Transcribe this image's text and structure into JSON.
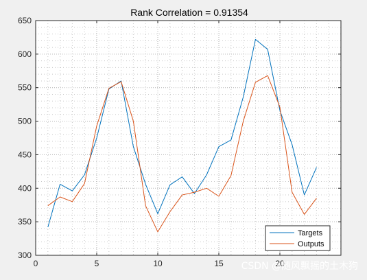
{
  "figure_background": "#f0f0f0",
  "chart_data": {
    "type": "line",
    "title": "Rank Correlation = 0.91354",
    "xlabel": "",
    "ylabel": "",
    "xlim": [
      0,
      25
    ],
    "ylim": [
      300,
      650
    ],
    "xticks": [
      0,
      5,
      10,
      15,
      20
    ],
    "yticks": [
      300,
      350,
      400,
      450,
      500,
      550,
      600,
      650
    ],
    "grid": true,
    "minor_grid": true,
    "legend_position": "bottom-right",
    "x": [
      1,
      2,
      3,
      4,
      5,
      6,
      7,
      8,
      9,
      10,
      11,
      12,
      13,
      14,
      15,
      16,
      17,
      18,
      19,
      20,
      21,
      22,
      23
    ],
    "series": [
      {
        "name": "Targets",
        "color": "#0072bd",
        "values": [
          342,
          406,
          396,
          420,
          475,
          548,
          560,
          462,
          406,
          362,
          405,
          417,
          392,
          420,
          462,
          472,
          536,
          622,
          607,
          516,
          465,
          390,
          431
        ]
      },
      {
        "name": "Outputs",
        "color": "#d95319",
        "values": [
          374,
          387,
          380,
          407,
          493,
          549,
          559,
          500,
          374,
          335,
          365,
          390,
          394,
          400,
          388,
          419,
          500,
          558,
          568,
          521,
          394,
          361,
          385
        ]
      }
    ]
  },
  "watermark": "CSDN @随风飘摇的土木狗"
}
